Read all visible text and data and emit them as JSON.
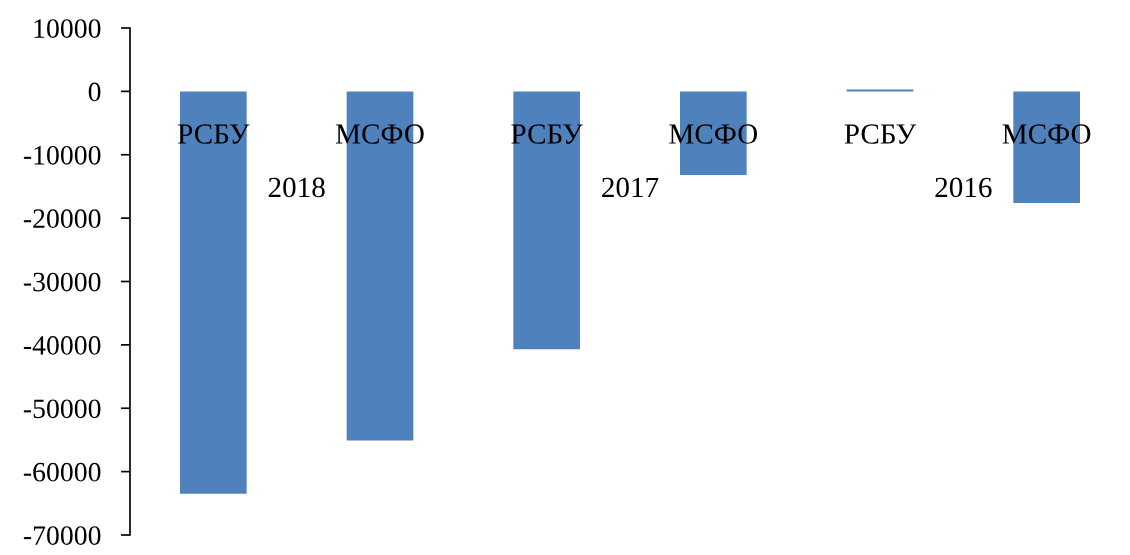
{
  "chart_data": {
    "type": "bar",
    "categories": [
      "РСБУ",
      "МСФО",
      "РСБУ",
      "МСФО",
      "РСБУ",
      "МСФО"
    ],
    "values": [
      -63500,
      -55100,
      -40700,
      -13200,
      300,
      -17600
    ],
    "color": "#4f81bd",
    "ylim": [
      -70000,
      10000
    ],
    "yticks": [
      -70000,
      -60000,
      -50000,
      -40000,
      -30000,
      -20000,
      -10000,
      0,
      10000
    ],
    "annotations": [
      "2018",
      "2017",
      "2016"
    ]
  }
}
